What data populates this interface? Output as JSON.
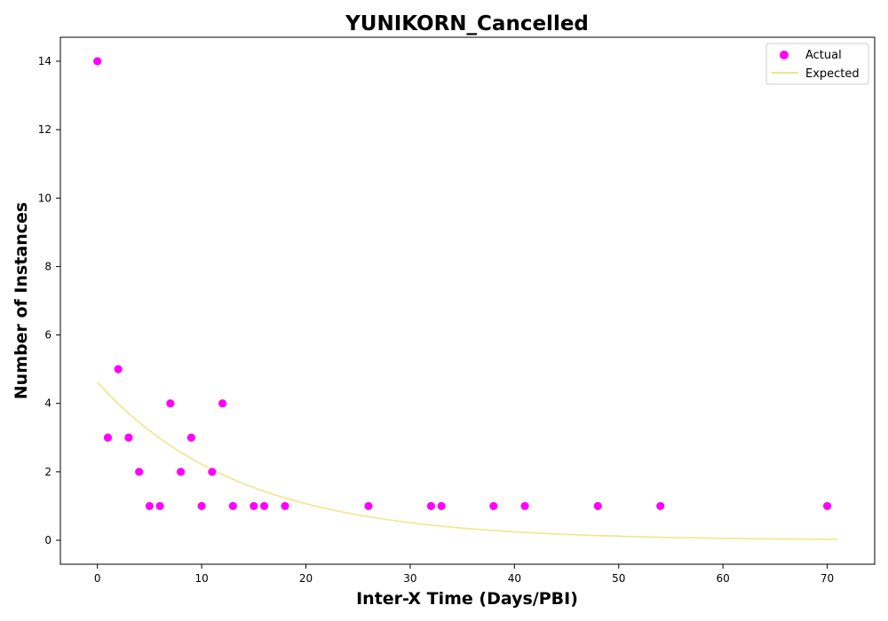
{
  "chart_data": {
    "type": "scatter",
    "title": "YUNIKORN_Cancelled",
    "xlabel": "Inter-X Time (Days/PBI)",
    "ylabel": "Number of Instances",
    "xlim": [
      -3.55,
      74.55
    ],
    "ylim": [
      -0.7,
      14.7
    ],
    "xticks": [
      0,
      10,
      20,
      30,
      40,
      50,
      60,
      70
    ],
    "yticks": [
      0,
      2,
      4,
      6,
      8,
      10,
      12,
      14
    ],
    "grid": false,
    "legend_position": "top-right",
    "series": [
      {
        "name": "Actual",
        "kind": "scatter",
        "color": "#ff00ff",
        "x": [
          0,
          1,
          2,
          3,
          4,
          5,
          6,
          7,
          8,
          9,
          10,
          11,
          12,
          13,
          15,
          16,
          18,
          26,
          32,
          33,
          38,
          41,
          48,
          54,
          70
        ],
        "y": [
          14,
          3,
          5,
          3,
          2,
          1,
          1,
          4,
          2,
          3,
          1,
          2,
          4,
          1,
          1,
          1,
          1,
          1,
          1,
          1,
          1,
          1,
          1,
          1,
          1
        ]
      },
      {
        "name": "Expected",
        "kind": "line",
        "color": "#f0e68c",
        "model": "exponential",
        "amplitude": 4.62,
        "rate": 0.0732,
        "x_range": [
          0,
          71
        ]
      }
    ]
  }
}
